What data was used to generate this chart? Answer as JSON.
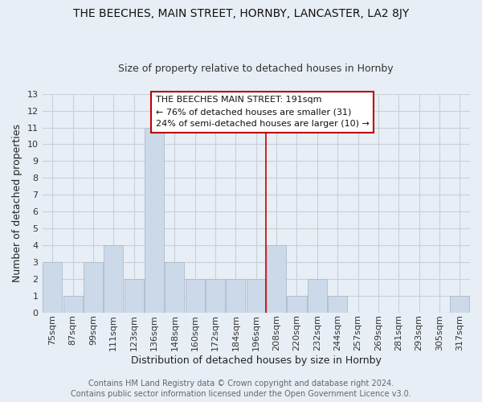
{
  "title": "THE BEECHES, MAIN STREET, HORNBY, LANCASTER, LA2 8JY",
  "subtitle": "Size of property relative to detached houses in Hornby",
  "xlabel": "Distribution of detached houses by size in Hornby",
  "ylabel": "Number of detached properties",
  "bar_color": "#ccd9e8",
  "bar_edge_color": "#aabcce",
  "categories": [
    "75sqm",
    "87sqm",
    "99sqm",
    "111sqm",
    "123sqm",
    "136sqm",
    "148sqm",
    "160sqm",
    "172sqm",
    "184sqm",
    "196sqm",
    "208sqm",
    "220sqm",
    "232sqm",
    "244sqm",
    "257sqm",
    "269sqm",
    "281sqm",
    "293sqm",
    "305sqm",
    "317sqm"
  ],
  "values": [
    3,
    1,
    3,
    4,
    2,
    11,
    3,
    2,
    2,
    2,
    2,
    4,
    1,
    2,
    1,
    0,
    0,
    0,
    0,
    0,
    1
  ],
  "ylim": [
    0,
    13
  ],
  "yticks": [
    0,
    1,
    2,
    3,
    4,
    5,
    6,
    7,
    8,
    9,
    10,
    11,
    12,
    13
  ],
  "annotation_title": "THE BEECHES MAIN STREET: 191sqm",
  "annotation_line1": "← 76% of detached houses are smaller (31)",
  "annotation_line2": "24% of semi-detached houses are larger (10) →",
  "annotation_box_color": "#ffffff",
  "annotation_box_edge": "#bb0000",
  "vline_index": 10,
  "vline_color": "#cc0000",
  "footer1": "Contains HM Land Registry data © Crown copyright and database right 2024.",
  "footer2": "Contains public sector information licensed under the Open Government Licence v3.0.",
  "background_color": "#e8eef5",
  "plot_bg_color": "#e8eef5",
  "grid_color": "#c8d0d8",
  "title_fontsize": 10,
  "subtitle_fontsize": 9,
  "ylabel_fontsize": 9,
  "xlabel_fontsize": 9,
  "tick_fontsize": 8,
  "footer_fontsize": 7
}
